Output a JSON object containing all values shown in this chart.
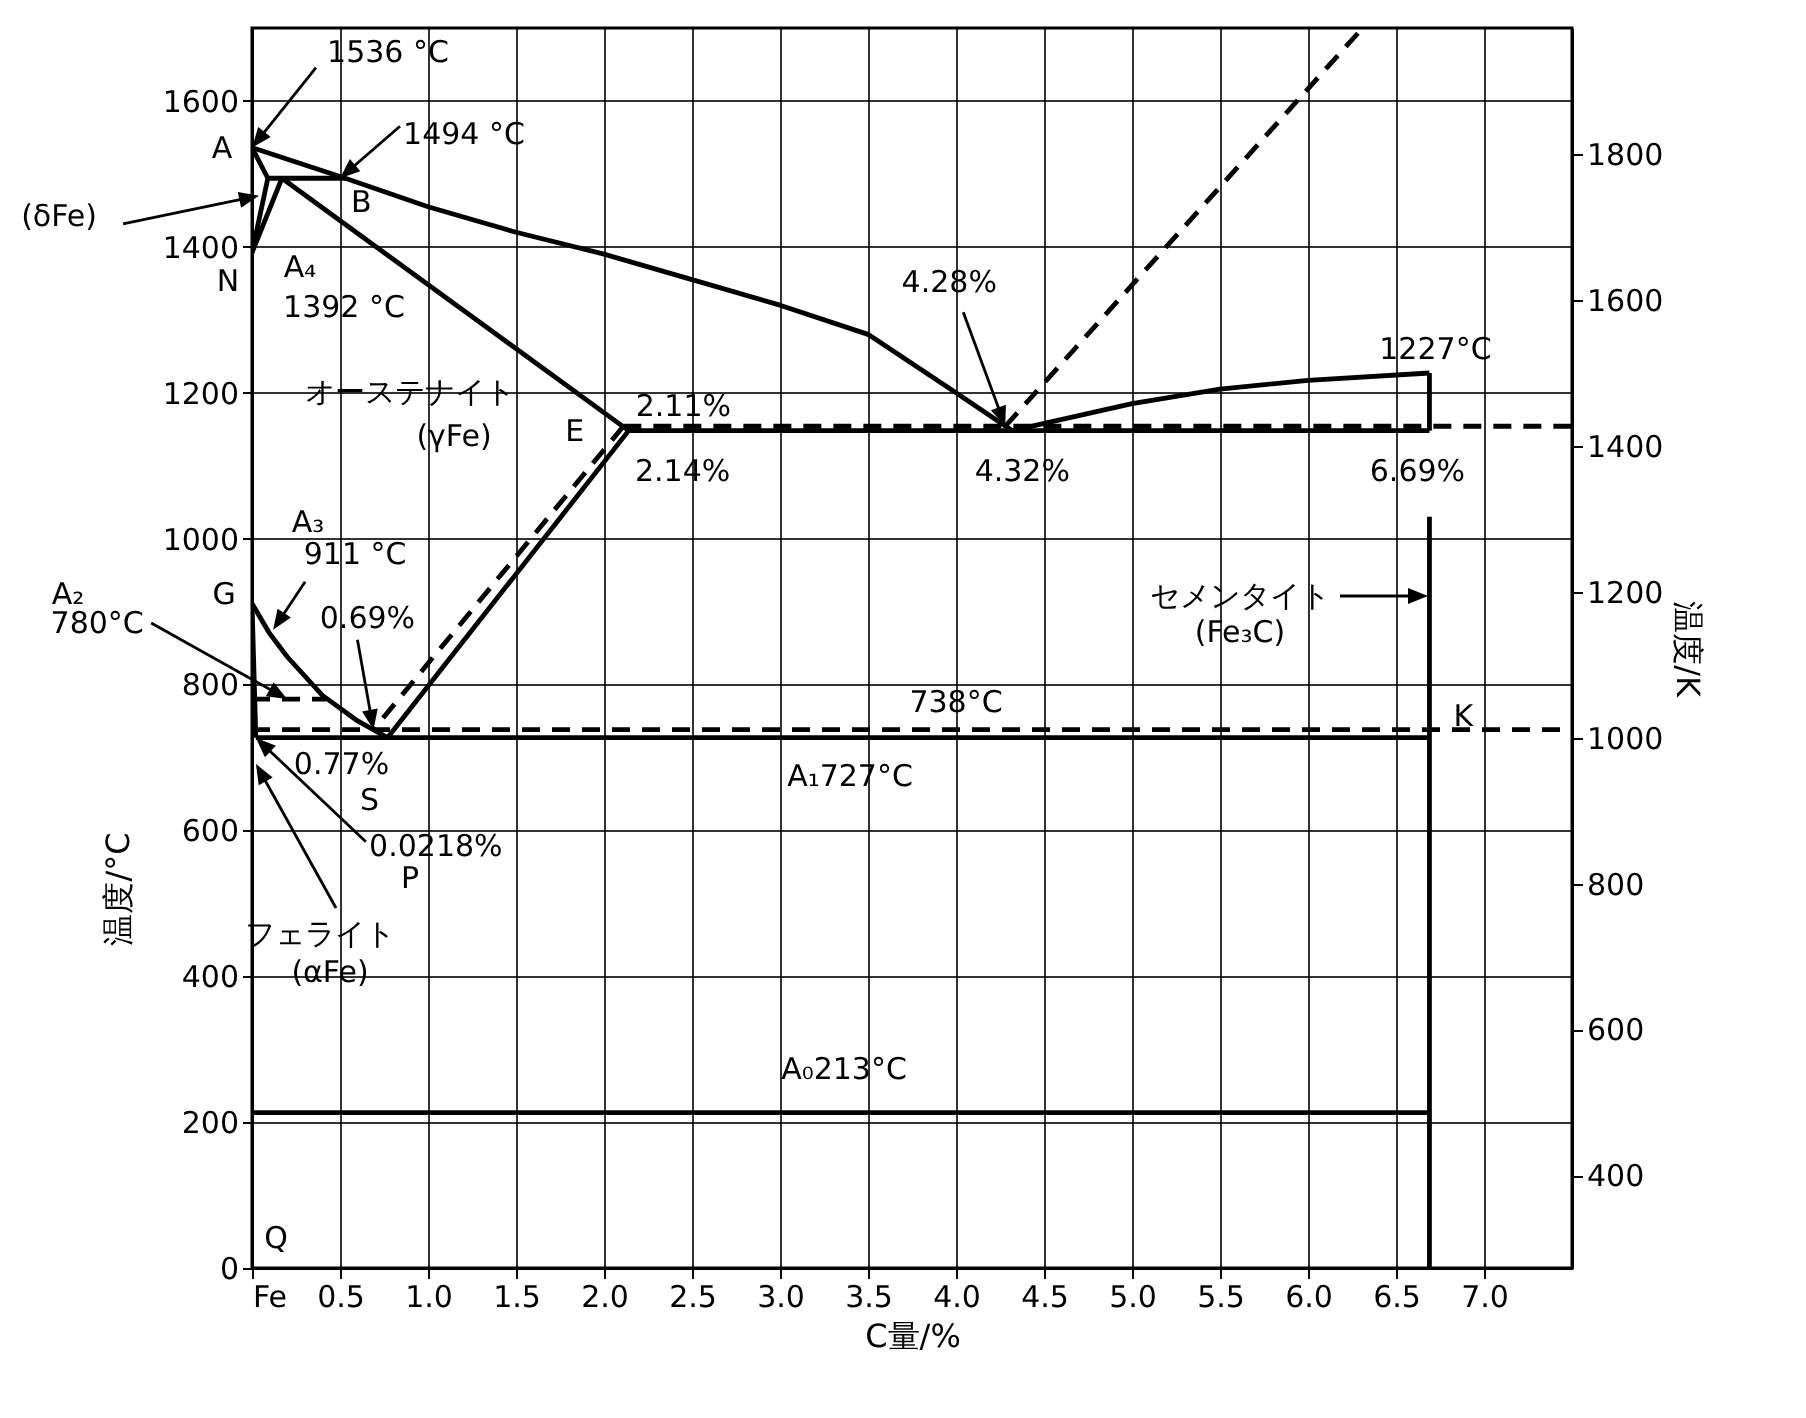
{
  "chart_data": {
    "type": "line",
    "xlabel": "C量/%",
    "ylabel": "温度/°C",
    "y2label": "温度/K",
    "xlim": [
      0,
      7.5
    ],
    "ylim": [
      0,
      1700
    ],
    "y2lim": [
      273,
      1973
    ],
    "xticks": [
      {
        "value": 0,
        "label": "Fe"
      },
      0.5,
      {
        "value": 1,
        "label": "1.0"
      },
      1.5,
      {
        "value": 2,
        "label": "2.0"
      },
      2.5,
      {
        "value": 3,
        "label": "3.0"
      },
      3.5,
      {
        "value": 4,
        "label": "4.0"
      },
      4.5,
      {
        "value": 5,
        "label": "5.0"
      },
      5.5,
      {
        "value": 6,
        "label": "6.0"
      },
      6.5,
      {
        "value": 7,
        "label": "7.0"
      }
    ],
    "yticks": [
      0,
      200,
      400,
      600,
      800,
      1000,
      1200,
      1400,
      1600
    ],
    "y2ticks": [
      400,
      600,
      800,
      1000,
      1200,
      1400,
      1600,
      1800
    ],
    "grid": true,
    "line_style": "solid",
    "series": [
      {
        "color": "#000000",
        "x": [
          0,
          0.53,
          1.0,
          1.5,
          2.0,
          2.5,
          3.0,
          3.5,
          4.0,
          4.32
        ],
        "values": [
          1536,
          1494,
          1455,
          1420,
          1390,
          1355,
          1320,
          1280,
          1200,
          1148
        ]
      },
      {
        "color": "#000000",
        "x": [
          0,
          0.09
        ],
        "values": [
          1536,
          1494
        ]
      },
      {
        "color": "#000000",
        "x": [
          0.09,
          0
        ],
        "values": [
          1494,
          1392
        ]
      },
      {
        "color": "#000000",
        "x": [
          0,
          0.17
        ],
        "values": [
          1392,
          1494
        ]
      },
      {
        "color": "#000000",
        "x": [
          0.09,
          0.53
        ],
        "values": [
          1494,
          1494
        ]
      },
      {
        "color": "#000000",
        "x": [
          0.17,
          2.14
        ],
        "values": [
          1494,
          1148
        ]
      },
      {
        "color": "#000000",
        "x": [
          2.14,
          6.69
        ],
        "values": [
          1148,
          1148
        ]
      },
      {
        "color": "#000000",
        "x": [
          4.32,
          5.0,
          5.5,
          6.0,
          6.69
        ],
        "values": [
          1148,
          1185,
          1205,
          1217,
          1227
        ]
      },
      {
        "color": "#000000",
        "x": [
          6.69,
          6.69
        ],
        "values": [
          1227,
          1148
        ]
      },
      {
        "color": "#000000",
        "x": [
          6.69,
          6.69
        ],
        "values": [
          1030,
          0
        ]
      },
      {
        "color": "#000000",
        "x": [
          2.14,
          0.77
        ],
        "values": [
          1148,
          727
        ]
      },
      {
        "color": "#000000",
        "x": [
          0,
          0.1,
          0.2,
          0.4,
          0.6,
          0.77
        ],
        "values": [
          911,
          870,
          838,
          785,
          750,
          727
        ]
      },
      {
        "color": "#000000",
        "x": [
          0.0218,
          6.69
        ],
        "values": [
          727,
          727
        ]
      },
      {
        "color": "#000000",
        "x": [
          0,
          0.0218
        ],
        "values": [
          911,
          727
        ]
      },
      {
        "color": "#000000",
        "x": [
          0,
          6.69
        ],
        "values": [
          213,
          213
        ]
      },
      {
        "color": "#000000",
        "line_style": "dashed",
        "x": [
          0,
          0.42
        ],
        "values": [
          780,
          780
        ]
      },
      {
        "color": "#000000",
        "line_style": "dashed",
        "x": [
          0,
          7.5
        ],
        "values": [
          738,
          738
        ]
      },
      {
        "color": "#000000",
        "line_style": "dashed",
        "x": [
          2.11,
          7.5
        ],
        "values": [
          1154,
          1154
        ]
      },
      {
        "color": "#000000",
        "line_style": "dashed",
        "x": [
          2.11,
          0.69
        ],
        "values": [
          1154,
          738
        ]
      },
      {
        "color": "#000000",
        "line_style": "dashed",
        "x": [
          4.28,
          6.31
        ],
        "values": [
          1154,
          1700
        ]
      }
    ],
    "annotations": [
      {
        "text": "1536 °C",
        "x": 0,
        "y": 1536
      },
      {
        "text": "1494 °C",
        "x": 0.5,
        "y": 1494
      },
      {
        "text": "(δFe)",
        "x": 0.04,
        "y": 1470
      },
      {
        "text": "A",
        "x": 0,
        "y": 1536
      },
      {
        "text": "B",
        "x": 0.53,
        "y": 1494
      },
      {
        "text": "N",
        "x": 0,
        "y": 1392
      },
      {
        "text": "A₄",
        "x": 0,
        "y": 1392
      },
      {
        "text": "1392 °C",
        "x": 0,
        "y": 1392
      },
      "オーステナイト",
      "(γFe)",
      {
        "text": "E",
        "x": 2.14,
        "y": 1148
      },
      {
        "text": "2.11%",
        "x": 2.11,
        "y": 1154
      },
      {
        "text": "2.14%",
        "x": 2.14,
        "y": 1148
      },
      {
        "text": "4.28%",
        "x": 4.28,
        "y": 1154
      },
      {
        "text": "4.32%",
        "x": 4.32,
        "y": 1148
      },
      {
        "text": "1227°C",
        "x": 6.69,
        "y": 1227
      },
      {
        "text": "6.69%",
        "x": 6.69,
        "y": 1148
      },
      "セメンタイト",
      "(Fe₃C)",
      "A₃",
      {
        "text": "911 °C",
        "x": 0.12,
        "y": 875
      },
      {
        "text": "G",
        "x": 0,
        "y": 911
      },
      "A₂",
      {
        "text": "780°C",
        "x": 0.2,
        "y": 780
      },
      {
        "text": "0.69%",
        "x": 0.69,
        "y": 738
      },
      {
        "text": "738°C",
        "x": 4.0,
        "y": 738
      },
      {
        "text": "K",
        "x": 6.69,
        "y": 727
      },
      {
        "text": "0.77%",
        "x": 0.77,
        "y": 727
      },
      {
        "text": "S",
        "x": 0.77,
        "y": 727
      },
      {
        "text": "A₁727°C",
        "x": 3.5,
        "y": 727
      },
      {
        "text": "0.0218%",
        "x": 0.0218,
        "y": 727
      },
      "P",
      "フェライト",
      "(αFe)",
      {
        "text": "A₀213°C",
        "x": 3.5,
        "y": 213
      },
      "Q"
    ]
  }
}
